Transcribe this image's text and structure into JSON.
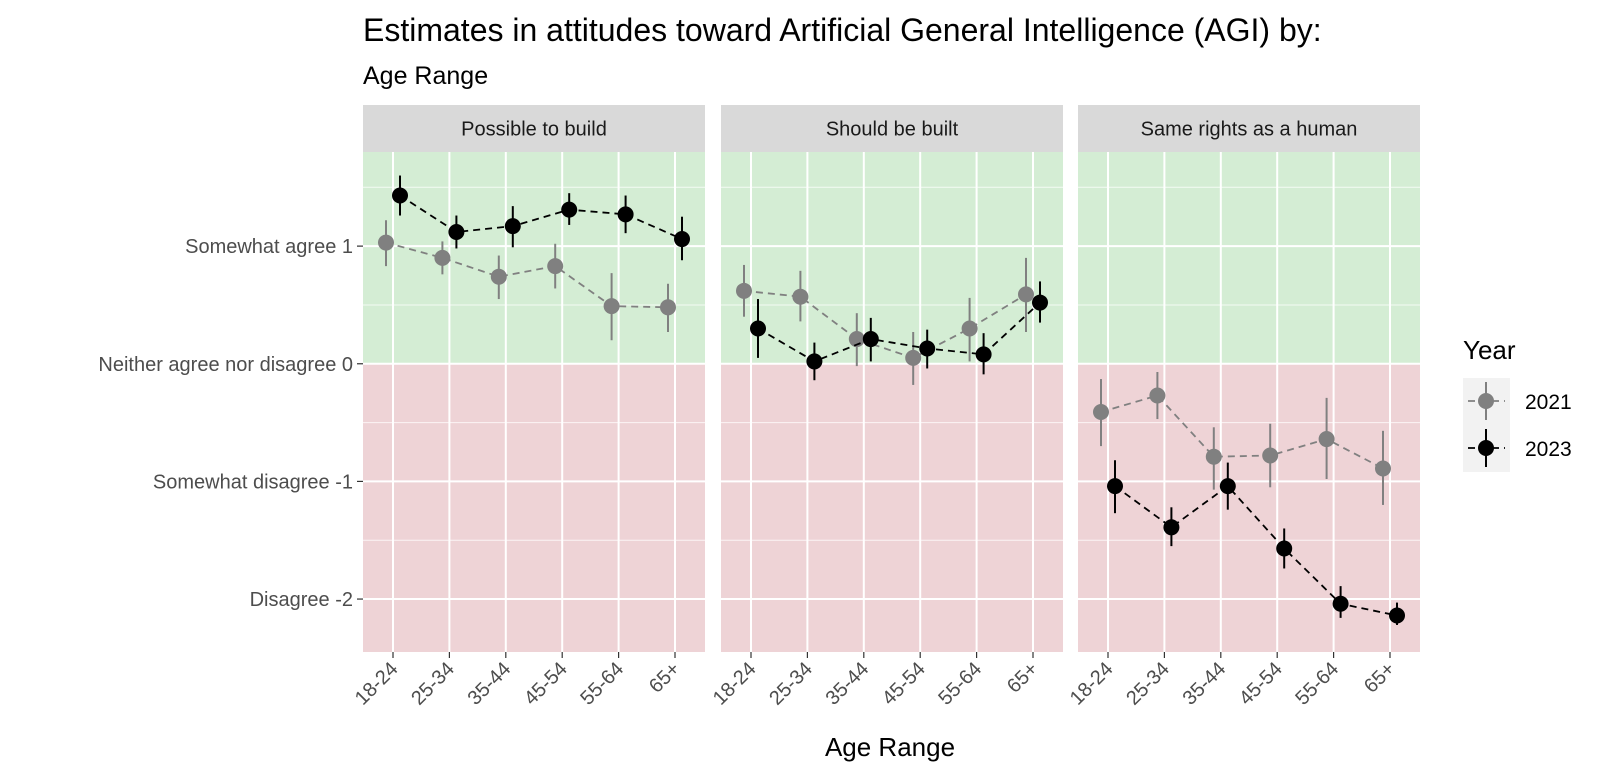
{
  "chart_data": {
    "type": "scatter",
    "title": "Estimates in attitudes toward Artificial General Intelligence (AGI) by:",
    "subtitle": "Age Range",
    "xlabel": "Age Range",
    "ylabel": "",
    "categories": [
      "18-24",
      "25-34",
      "35-44",
      "45-54",
      "55-64",
      "65+"
    ],
    "ylim": [
      -2.45,
      1.8
    ],
    "y_ticks": [
      {
        "value": 1,
        "label": "Somewhat agree 1"
      },
      {
        "value": 0,
        "label": "Neither agree nor disagree 0"
      },
      {
        "value": -1,
        "label": "Somewhat disagree -1"
      },
      {
        "value": -2,
        "label": "Disagree -2"
      }
    ],
    "background_bands": [
      {
        "from": 0,
        "to": 1.8,
        "color": "#d4edd4"
      },
      {
        "from": -2.45,
        "to": 0,
        "color": "#eed3d6"
      }
    ],
    "grid": true,
    "legend": {
      "title": "Year",
      "placement": "right"
    },
    "series_style": [
      {
        "name": "2021",
        "color": "#808080"
      },
      {
        "name": "2023",
        "color": "#000000"
      }
    ],
    "panels": [
      {
        "label": "Possible to build",
        "series": [
          {
            "name": "2021",
            "values": [
              1.03,
              0.9,
              0.74,
              0.83,
              0.49,
              0.48
            ],
            "lower": [
              0.83,
              0.76,
              0.55,
              0.64,
              0.2,
              0.27
            ],
            "upper": [
              1.22,
              1.04,
              0.92,
              1.02,
              0.77,
              0.68
            ]
          },
          {
            "name": "2023",
            "values": [
              1.43,
              1.12,
              1.17,
              1.31,
              1.27,
              1.06
            ],
            "lower": [
              1.26,
              0.98,
              0.99,
              1.18,
              1.11,
              0.88
            ],
            "upper": [
              1.6,
              1.26,
              1.34,
              1.45,
              1.43,
              1.25
            ]
          }
        ]
      },
      {
        "label": "Should be built",
        "series": [
          {
            "name": "2021",
            "values": [
              0.62,
              0.57,
              0.21,
              0.05,
              0.3,
              0.59
            ],
            "lower": [
              0.4,
              0.36,
              -0.02,
              -0.18,
              0.02,
              0.27
            ],
            "upper": [
              0.84,
              0.79,
              0.43,
              0.27,
              0.56,
              0.9
            ]
          },
          {
            "name": "2023",
            "values": [
              0.3,
              0.02,
              0.21,
              0.13,
              0.08,
              0.52
            ],
            "lower": [
              0.05,
              -0.14,
              0.02,
              -0.04,
              -0.09,
              0.35
            ],
            "upper": [
              0.55,
              0.18,
              0.39,
              0.29,
              0.26,
              0.7
            ]
          }
        ]
      },
      {
        "label": "Same rights as a human",
        "series": [
          {
            "name": "2021",
            "values": [
              -0.41,
              -0.27,
              -0.79,
              -0.78,
              -0.64,
              -0.89
            ],
            "lower": [
              -0.7,
              -0.47,
              -1.07,
              -1.05,
              -0.98,
              -1.2
            ],
            "upper": [
              -0.13,
              -0.07,
              -0.54,
              -0.51,
              -0.29,
              -0.57
            ]
          },
          {
            "name": "2023",
            "values": [
              -1.04,
              -1.39,
              -1.04,
              -1.57,
              -2.04,
              -2.14
            ],
            "lower": [
              -1.27,
              -1.55,
              -1.24,
              -1.74,
              -2.16,
              -2.22
            ],
            "upper": [
              -0.82,
              -1.22,
              -0.84,
              -1.4,
              -1.89,
              -2.03
            ]
          }
        ]
      }
    ]
  }
}
